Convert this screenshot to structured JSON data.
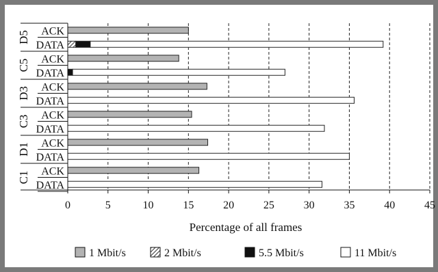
{
  "chart_data": {
    "type": "bar",
    "orientation": "horizontal",
    "stacked": true,
    "title": "",
    "xlabel": "Percentage of all frames",
    "ylabel": "",
    "xlim": [
      0,
      45
    ],
    "xticks": [
      "0",
      "5",
      "10",
      "15",
      "20",
      "25",
      "30",
      "35",
      "40",
      "45"
    ],
    "grid": "vertical-dashed",
    "legend_position": "bottom",
    "colors": {
      "1 Mbit/s": "#b3b3b3",
      "2 Mbit/s": "hatched",
      "5.5 Mbit/s": "#111111",
      "11 Mbit/s": "#ffffff"
    },
    "groups": [
      {
        "name": "D5",
        "rows": [
          {
            "label": "ACK",
            "segments": [
              15.0,
              0,
              0,
              0
            ]
          },
          {
            "label": "DATA",
            "segments": [
              0,
              1.0,
              1.8,
              36.4
            ]
          }
        ]
      },
      {
        "name": "C5",
        "rows": [
          {
            "label": "ACK",
            "segments": [
              13.8,
              0,
              0,
              0
            ]
          },
          {
            "label": "DATA",
            "segments": [
              0,
              0,
              0.6,
              26.4
            ]
          }
        ]
      },
      {
        "name": "D3",
        "rows": [
          {
            "label": "ACK",
            "segments": [
              17.3,
              0,
              0,
              0
            ]
          },
          {
            "label": "DATA",
            "segments": [
              0,
              0,
              0,
              35.6
            ]
          }
        ]
      },
      {
        "name": "C3",
        "rows": [
          {
            "label": "ACK",
            "segments": [
              15.4,
              0,
              0,
              0
            ]
          },
          {
            "label": "DATA",
            "segments": [
              0,
              0,
              0,
              31.9
            ]
          }
        ]
      },
      {
        "name": "D1",
        "rows": [
          {
            "label": "ACK",
            "segments": [
              17.4,
              0,
              0,
              0
            ]
          },
          {
            "label": "DATA",
            "segments": [
              0,
              0,
              0,
              35.0
            ]
          }
        ]
      },
      {
        "name": "C1",
        "rows": [
          {
            "label": "ACK",
            "segments": [
              16.3,
              0,
              0,
              0
            ]
          },
          {
            "label": "DATA",
            "segments": [
              0,
              0,
              0,
              31.6
            ]
          }
        ]
      }
    ],
    "series": [
      {
        "name": "1 Mbit/s"
      },
      {
        "name": "2 Mbit/s"
      },
      {
        "name": "5.5 Mbit/s"
      },
      {
        "name": "11 Mbit/s"
      }
    ]
  }
}
